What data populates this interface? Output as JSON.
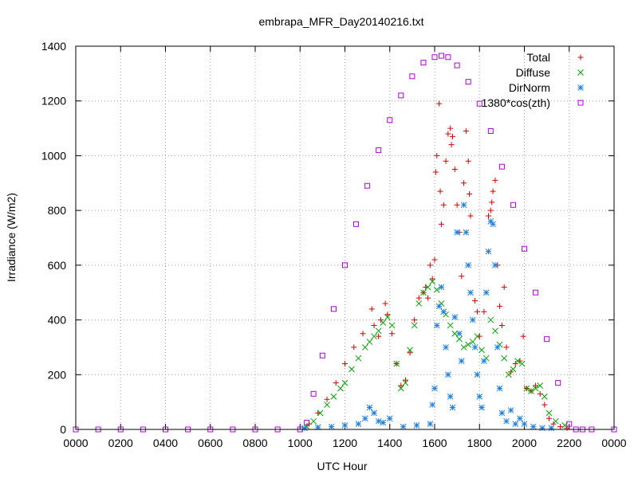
{
  "chart_data": {
    "type": "scatter",
    "title": "embrapa_MFR_Day20140216.txt",
    "xlabel": "UTC Hour",
    "ylabel": "Irradiance (W/m2)",
    "xlim": [
      0,
      24
    ],
    "ylim": [
      0,
      1400
    ],
    "grid": true,
    "legend_position": "top-right",
    "x_ticks": [
      0,
      2,
      4,
      6,
      8,
      10,
      12,
      14,
      16,
      18,
      20,
      22,
      24
    ],
    "x_tick_labels": [
      "0000",
      "0200",
      "0400",
      "0600",
      "0800",
      "1000",
      "1200",
      "1400",
      "1600",
      "1800",
      "2000",
      "2200",
      "0000"
    ],
    "y_ticks": [
      0,
      200,
      400,
      600,
      800,
      1000,
      1200,
      1400
    ],
    "y_tick_labels": [
      "0",
      "200",
      "400",
      "600",
      "800",
      "1000",
      "1200",
      "1400"
    ],
    "series": [
      {
        "name": "Total",
        "marker": "plus",
        "color": "#d40000",
        "x": [
          10.4,
          10.8,
          11.2,
          11.6,
          12.0,
          12.4,
          12.8,
          13.2,
          13.3,
          13.5,
          13.6,
          13.8,
          13.9,
          14.1,
          14.3,
          14.5,
          14.7,
          14.9,
          15.1,
          15.3,
          15.5,
          15.6,
          15.7,
          15.8,
          15.9,
          16.0,
          16.05,
          16.1,
          16.2,
          16.25,
          16.3,
          16.4,
          16.5,
          16.6,
          16.7,
          16.75,
          16.8,
          16.9,
          17.0,
          17.1,
          17.2,
          17.3,
          17.4,
          17.5,
          17.55,
          17.6,
          17.8,
          17.9,
          18.0,
          18.2,
          18.4,
          18.5,
          18.55,
          18.6,
          18.7,
          18.8,
          18.9,
          19.0,
          19.1,
          19.2,
          19.4,
          19.6,
          19.8,
          19.95,
          20.1,
          20.3,
          20.5,
          20.7,
          20.9,
          21.1,
          21.3,
          21.6,
          21.9
        ],
        "y": [
          20,
          60,
          110,
          170,
          240,
          300,
          350,
          440,
          380,
          340,
          400,
          460,
          420,
          350,
          240,
          160,
          180,
          280,
          400,
          480,
          500,
          520,
          480,
          600,
          550,
          620,
          940,
          1000,
          1190,
          870,
          750,
          820,
          980,
          1080,
          1100,
          1040,
          1070,
          950,
          820,
          720,
          560,
          900,
          1090,
          980,
          860,
          780,
          470,
          430,
          340,
          430,
          780,
          800,
          830,
          870,
          910,
          600,
          450,
          380,
          520,
          300,
          210,
          240,
          250,
          340,
          150,
          140,
          160,
          130,
          90,
          40,
          20,
          10,
          5
        ]
      },
      {
        "name": "Diffuse",
        "marker": "cross",
        "color": "#00a000",
        "x": [
          10.3,
          10.6,
          10.9,
          11.2,
          11.5,
          11.8,
          12.0,
          12.3,
          12.6,
          12.9,
          13.1,
          13.3,
          13.5,
          13.7,
          13.9,
          14.1,
          14.3,
          14.5,
          14.7,
          14.9,
          15.1,
          15.3,
          15.5,
          15.7,
          15.9,
          16.1,
          16.3,
          16.5,
          16.7,
          16.9,
          17.1,
          17.3,
          17.5,
          17.7,
          17.9,
          18.1,
          18.3,
          18.5,
          18.7,
          18.9,
          19.1,
          19.3,
          19.5,
          19.7,
          19.9,
          20.1,
          20.3,
          20.5,
          20.7,
          20.9,
          21.1,
          21.4,
          21.8
        ],
        "y": [
          10,
          30,
          60,
          90,
          120,
          150,
          170,
          220,
          260,
          300,
          320,
          340,
          360,
          390,
          410,
          380,
          240,
          150,
          170,
          290,
          380,
          460,
          500,
          520,
          540,
          510,
          460,
          420,
          380,
          350,
          330,
          300,
          310,
          320,
          340,
          290,
          260,
          400,
          360,
          310,
          260,
          200,
          220,
          250,
          240,
          150,
          140,
          150,
          160,
          120,
          60,
          30,
          15
        ]
      },
      {
        "name": "DirNorm",
        "marker": "star",
        "color": "#2080e0",
        "x": [
          10.2,
          10.8,
          11.4,
          12.0,
          12.6,
          12.9,
          13.1,
          13.3,
          13.5,
          13.7,
          14.0,
          14.6,
          15.2,
          15.8,
          15.9,
          16.0,
          16.1,
          16.2,
          16.3,
          16.4,
          16.5,
          16.6,
          16.7,
          16.8,
          16.9,
          17.0,
          17.1,
          17.2,
          17.3,
          17.4,
          17.5,
          17.6,
          17.7,
          17.8,
          17.9,
          18.0,
          18.1,
          18.2,
          18.3,
          18.4,
          18.5,
          18.6,
          18.7,
          18.8,
          18.9,
          19.0,
          19.2,
          19.4,
          19.6,
          19.8,
          20.0,
          20.4,
          20.8,
          21.2
        ],
        "y": [
          5,
          8,
          10,
          15,
          20,
          40,
          80,
          60,
          30,
          25,
          40,
          10,
          15,
          20,
          90,
          150,
          380,
          450,
          520,
          430,
          300,
          200,
          120,
          80,
          410,
          720,
          350,
          250,
          820,
          720,
          600,
          500,
          400,
          300,
          200,
          120,
          80,
          250,
          500,
          650,
          760,
          750,
          600,
          300,
          150,
          60,
          30,
          70,
          20,
          40,
          20,
          10,
          5,
          5
        ]
      },
      {
        "name": "1380*cos(zth)",
        "marker": "square",
        "color": "#b000e0",
        "x": [
          0,
          1,
          2,
          3,
          4,
          5,
          6,
          7,
          8,
          9,
          10,
          10.3,
          10.6,
          11,
          11.5,
          12,
          12.5,
          13,
          13.5,
          14,
          14.5,
          15,
          15.5,
          16,
          16.3,
          16.6,
          17,
          17.5,
          18,
          18.5,
          19,
          19.5,
          20,
          20.5,
          21,
          21.5,
          22,
          22.3,
          22.6,
          23,
          24
        ],
        "y": [
          0,
          0,
          0,
          0,
          0,
          0,
          0,
          0,
          0,
          0,
          0,
          25,
          130,
          270,
          440,
          600,
          750,
          890,
          1020,
          1130,
          1220,
          1290,
          1340,
          1360,
          1365,
          1360,
          1330,
          1270,
          1190,
          1090,
          960,
          820,
          660,
          500,
          330,
          170,
          20,
          0,
          0,
          0,
          0
        ]
      }
    ]
  }
}
